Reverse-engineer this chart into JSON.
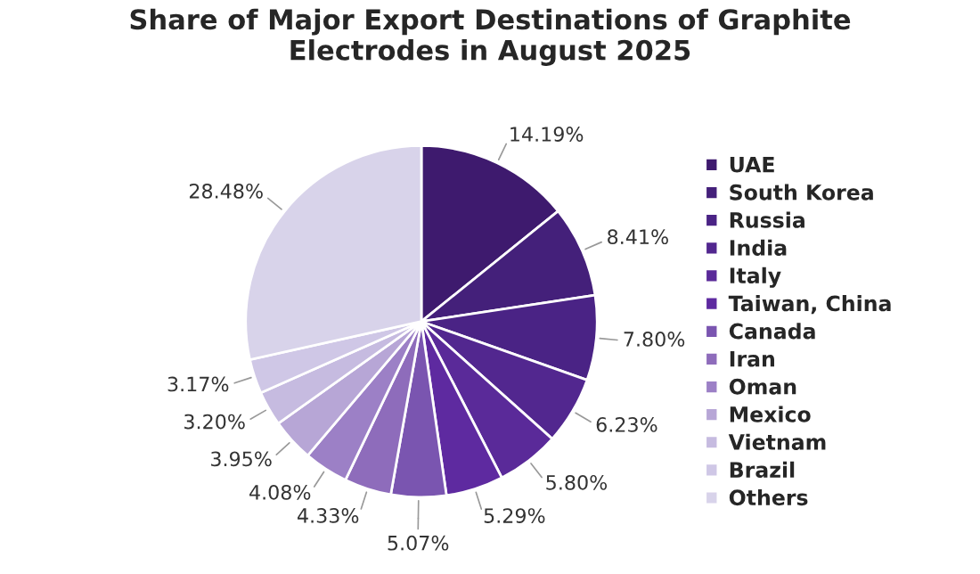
{
  "chart_data": {
    "type": "pie",
    "title": "Share of Major Export Destinations of Graphite\nElectrodes in August 2025",
    "categories": [
      "UAE",
      "South Korea",
      "Russia",
      "India",
      "Italy",
      "Taiwan, China",
      "Canada",
      "Iran",
      "Oman",
      "Mexico",
      "Vietnam",
      "Brazil",
      "Others"
    ],
    "values": [
      14.19,
      8.41,
      7.8,
      6.23,
      5.8,
      5.29,
      5.07,
      4.33,
      4.08,
      3.95,
      3.2,
      3.17,
      28.48
    ],
    "value_labels": [
      "14.19%",
      "8.41%",
      "7.80%",
      "6.23%",
      "5.80%",
      "5.29%",
      "5.07%",
      "4.33%",
      "4.08%",
      "3.95%",
      "3.20%",
      "3.17%",
      "28.48%"
    ],
    "colors": [
      "#3e1a6e",
      "#44207a",
      "#4a2385",
      "#52278f",
      "#5a2a99",
      "#5e2aa0",
      "#7a55b0",
      "#8e6cbb",
      "#9c80c6",
      "#b7a6d6",
      "#c6bbe0",
      "#cfc7e6",
      "#d8d3ea"
    ],
    "legend": "right"
  }
}
